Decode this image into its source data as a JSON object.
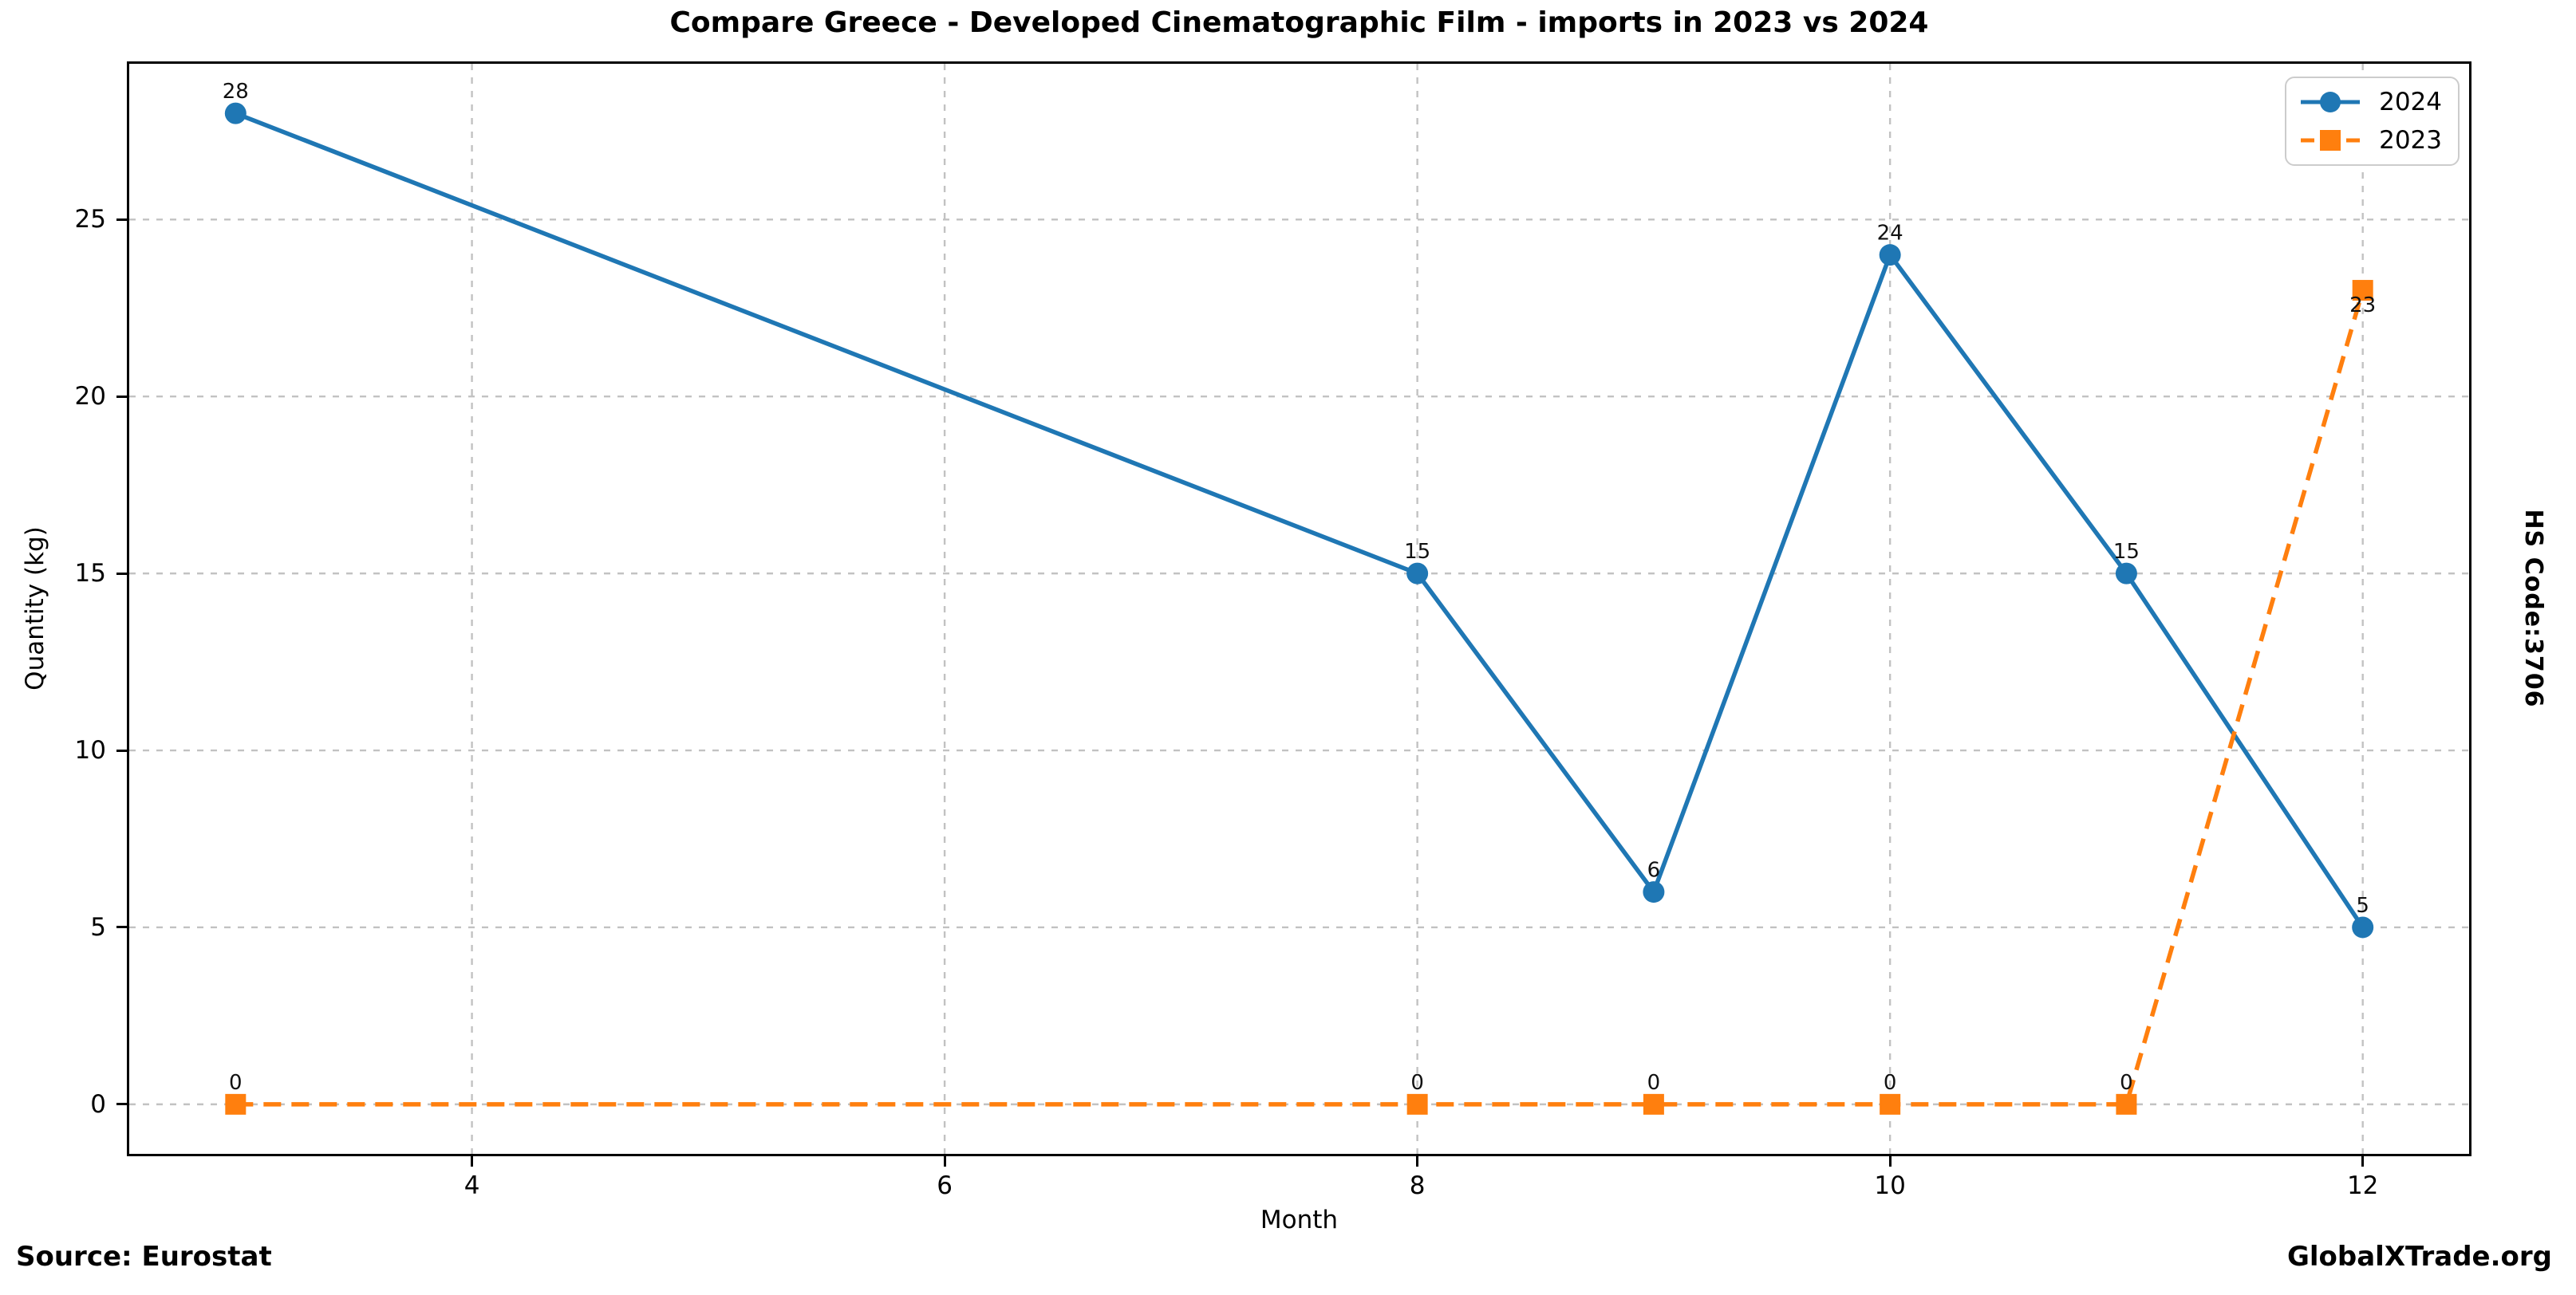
{
  "chart_data": {
    "type": "line",
    "title": "Compare Greece - Developed Cinematographic Film - imports in 2023 vs 2024",
    "xlabel": "Month",
    "ylabel": "Quantity (kg)",
    "x": [
      3,
      8,
      9,
      10,
      11,
      12
    ],
    "series": [
      {
        "name": "2024",
        "color": "#1f77b4",
        "line_style": "solid",
        "marker": "circle",
        "values": [
          28,
          15,
          6,
          24,
          15,
          5
        ],
        "labels": [
          "28",
          "15",
          "6",
          "24",
          "15",
          "5"
        ],
        "label_side": [
          "above",
          "above",
          "above",
          "above",
          "above",
          "above"
        ]
      },
      {
        "name": "2023",
        "color": "#ff7f0e",
        "line_style": "dashed",
        "marker": "square",
        "values": [
          0,
          0,
          0,
          0,
          0,
          23
        ],
        "labels": [
          "0",
          "0",
          "0",
          "0",
          "0",
          "23"
        ],
        "label_side": [
          "above",
          "above",
          "above",
          "above",
          "above",
          "below"
        ]
      }
    ],
    "xticks": [
      4,
      6,
      8,
      10,
      12
    ],
    "yticks": [
      0,
      5,
      10,
      15,
      20,
      25
    ],
    "xlim": [
      2.55,
      12.45
    ],
    "ylim": [
      -1.4,
      29.4
    ],
    "grid": true,
    "legend_position": "upper right"
  },
  "side_label": "HS Code:3706",
  "footer": {
    "source": "Source: Eurostat",
    "brand": "GlobalXTrade.org"
  },
  "colors": {
    "grid": "#c2c2c2",
    "spine": "#000000",
    "label_text": "#111111"
  }
}
